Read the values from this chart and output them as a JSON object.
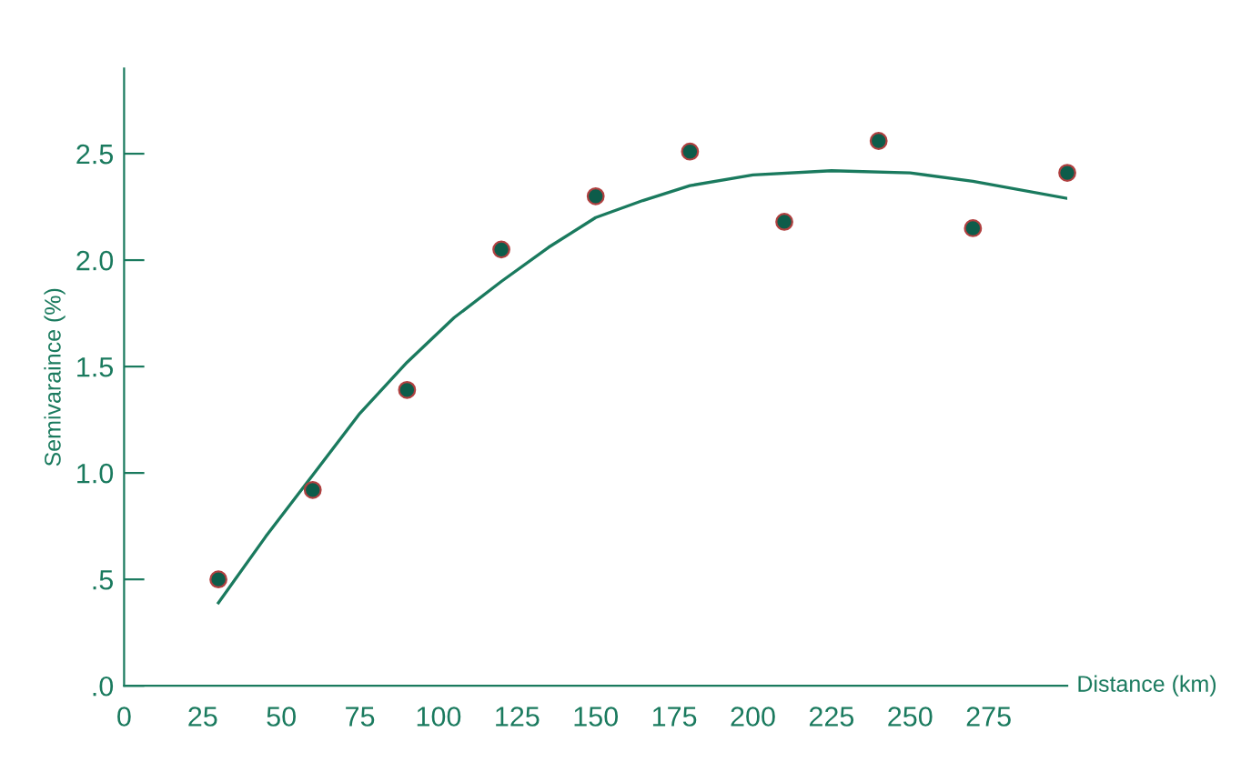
{
  "chart_data": {
    "type": "scatter",
    "xlabel": "Distance (km)",
    "ylabel": "Semivaraince (%)",
    "xlim": [
      0,
      300
    ],
    "ylim": [
      0,
      2.9
    ],
    "xticks": [
      0,
      25,
      50,
      75,
      100,
      125,
      150,
      175,
      200,
      225,
      250,
      275
    ],
    "yticks": [
      {
        "value": 0,
        "label": ".0"
      },
      {
        "value": 0.5,
        "label": ".5"
      },
      {
        "value": 1.0,
        "label": "1.0"
      },
      {
        "value": 1.5,
        "label": "1.5"
      },
      {
        "value": 2.0,
        "label": "2.0"
      },
      {
        "value": 2.5,
        "label": "2.5"
      }
    ],
    "grid": false,
    "legend": false,
    "marker": "circle",
    "series": [
      {
        "color": "#0d5c4a",
        "x": [
          30,
          60,
          90,
          120,
          150,
          180,
          210,
          240,
          270,
          300
        ],
        "values": [
          0.5,
          0.92,
          1.39,
          2.05,
          2.3,
          2.51,
          2.18,
          2.56,
          2.15,
          2.41
        ]
      },
      {
        "type": "line",
        "color": "#1a7a5e",
        "marker": "none",
        "x": [
          30,
          45,
          60,
          75,
          90,
          105,
          120,
          135,
          150,
          165,
          180,
          200,
          225,
          250,
          270,
          300
        ],
        "values": [
          0.39,
          0.7,
          0.99,
          1.28,
          1.52,
          1.73,
          1.9,
          2.06,
          2.2,
          2.28,
          2.35,
          2.4,
          2.42,
          2.41,
          2.37,
          2.29
        ]
      }
    ]
  }
}
